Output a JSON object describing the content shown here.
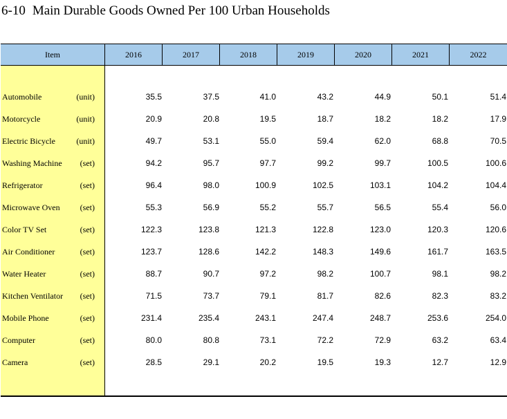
{
  "title": {
    "number": "6-10",
    "text": "Main Durable Goods Owned Per 100 Urban Households"
  },
  "table": {
    "columns": [
      "Item",
      "2016",
      "2017",
      "2018",
      "2019",
      "2020",
      "2021",
      "2022"
    ],
    "rows": [
      {
        "item": "Automobile",
        "unit": "(unit)",
        "values": [
          "35.5",
          "37.5",
          "41.0",
          "43.2",
          "44.9",
          "50.1",
          "51.4"
        ]
      },
      {
        "item": "Motorcycle",
        "unit": "(unit)",
        "values": [
          "20.9",
          "20.8",
          "19.5",
          "18.7",
          "18.2",
          "18.2",
          "17.9"
        ]
      },
      {
        "item": "Electric Bicycle",
        "unit": "(unit)",
        "values": [
          "49.7",
          "53.1",
          "55.0",
          "59.4",
          "62.0",
          "68.8",
          "70.5"
        ]
      },
      {
        "item": "Washing Machine",
        "unit": "(set)",
        "values": [
          "94.2",
          "95.7",
          "97.7",
          "99.2",
          "99.7",
          "100.5",
          "100.6"
        ]
      },
      {
        "item": "Refrigerator",
        "unit": "(set)",
        "values": [
          "96.4",
          "98.0",
          "100.9",
          "102.5",
          "103.1",
          "104.2",
          "104.4"
        ]
      },
      {
        "item": "Microwave Oven",
        "unit": "(set)",
        "values": [
          "55.3",
          "56.9",
          "55.2",
          "55.7",
          "56.5",
          "55.4",
          "56.0"
        ]
      },
      {
        "item": "Color TV Set",
        "unit": "(set)",
        "values": [
          "122.3",
          "123.8",
          "121.3",
          "122.8",
          "123.0",
          "120.3",
          "120.6"
        ]
      },
      {
        "item": "Air Conditioner",
        "unit": "(set)",
        "values": [
          "123.7",
          "128.6",
          "142.2",
          "148.3",
          "149.6",
          "161.7",
          "163.5"
        ]
      },
      {
        "item": "Water Heater",
        "unit": "(set)",
        "values": [
          "88.7",
          "90.7",
          "97.2",
          "98.2",
          "100.7",
          "98.1",
          "98.2"
        ]
      },
      {
        "item": "Kitchen Ventilator",
        "unit": "(set)",
        "values": [
          "71.5",
          "73.7",
          "79.1",
          "81.7",
          "82.6",
          "82.3",
          "83.2"
        ]
      },
      {
        "item": "Mobile Phone",
        "unit": "(set)",
        "values": [
          "231.4",
          "235.4",
          "243.1",
          "247.4",
          "248.7",
          "253.6",
          "254.0"
        ]
      },
      {
        "item": "Computer",
        "unit": "(set)",
        "values": [
          "80.0",
          "80.8",
          "73.1",
          "72.2",
          "72.9",
          "63.2",
          "63.4"
        ]
      },
      {
        "item": "Camera",
        "unit": "(set)",
        "values": [
          "28.5",
          "29.1",
          "20.2",
          "19.5",
          "19.3",
          "12.7",
          "12.9"
        ]
      }
    ]
  },
  "colors": {
    "header_bg": "#a6cbea",
    "stub_bg": "#ffff99"
  }
}
